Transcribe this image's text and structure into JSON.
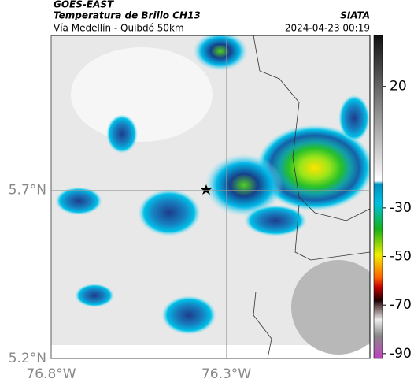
{
  "header": {
    "satellite": "GOES-EAST",
    "product": "Temperatura de Brillo CH13",
    "route": "Vía Medellín - Quibdó 50km",
    "source": "SIATA",
    "datetime": "2024-04-23 00:19"
  },
  "map": {
    "latlim": [
      5.2,
      6.16
    ],
    "lonlim": [
      -76.8,
      -75.89
    ],
    "lat_ticks": [
      {
        "value": 5.2,
        "label": "5.2°N"
      },
      {
        "value": 5.7,
        "label": "5.7°N"
      }
    ],
    "lon_ticks": [
      {
        "value": -76.8,
        "label": "76.8°W"
      },
      {
        "value": -76.3,
        "label": "76.3°W"
      }
    ]
  },
  "colorbar": {
    "lim": [
      -92,
      41
    ],
    "ticks": [
      20,
      -30,
      -50,
      -70,
      -90
    ]
  }
}
